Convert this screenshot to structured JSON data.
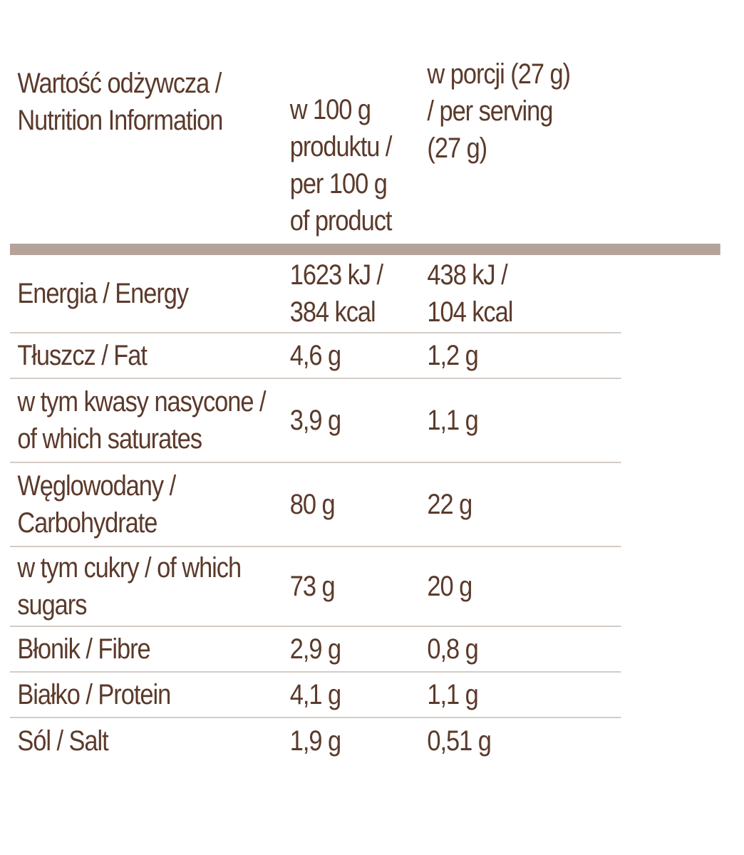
{
  "header": {
    "nutrient_label": "Wartość odżywcza / Nutrition Information",
    "nutrient_lines": [
      "Wartość odżywcza /",
      "Nutrition Information"
    ],
    "per100_lines": [
      "w 100 g",
      "produktu /",
      "per 100 g",
      "of product"
    ],
    "serving_lines": [
      "w porcji (27 g)",
      "/ per serving",
      "(27 g)"
    ]
  },
  "colors": {
    "text": "#5b3a2b",
    "header_rule": "#b3a398",
    "row_divider": "#d4ccc6"
  },
  "rows": [
    {
      "name_lines": [
        "Energia / Energy"
      ],
      "per100_lines": [
        "1623 kJ /",
        "384 kcal"
      ],
      "serving_lines": [
        "438 kJ /",
        "104 kcal"
      ]
    },
    {
      "name_lines": [
        "Tłuszcz / Fat"
      ],
      "per100_lines": [
        "4,6 g"
      ],
      "serving_lines": [
        "1,2 g"
      ]
    },
    {
      "name_lines": [
        "w tym kwasy nasycone /",
        "of which saturates"
      ],
      "per100_lines": [
        "3,9 g"
      ],
      "serving_lines": [
        "1,1 g"
      ]
    },
    {
      "name_lines": [
        "Węglowodany /",
        "Carbohydrate"
      ],
      "per100_lines": [
        "80 g"
      ],
      "serving_lines": [
        "22 g"
      ]
    },
    {
      "name_lines": [
        "w tym cukry / of which",
        "sugars"
      ],
      "per100_lines": [
        "73 g"
      ],
      "serving_lines": [
        "20 g"
      ]
    },
    {
      "name_lines": [
        "Błonik / Fibre"
      ],
      "per100_lines": [
        "2,9 g"
      ],
      "serving_lines": [
        "0,8 g"
      ]
    },
    {
      "name_lines": [
        "Białko / Protein"
      ],
      "per100_lines": [
        "4,1 g"
      ],
      "serving_lines": [
        "1,1 g"
      ]
    },
    {
      "name_lines": [
        "Sól / Salt"
      ],
      "per100_lines": [
        "1,9 g"
      ],
      "serving_lines": [
        "0,51 g"
      ]
    }
  ]
}
